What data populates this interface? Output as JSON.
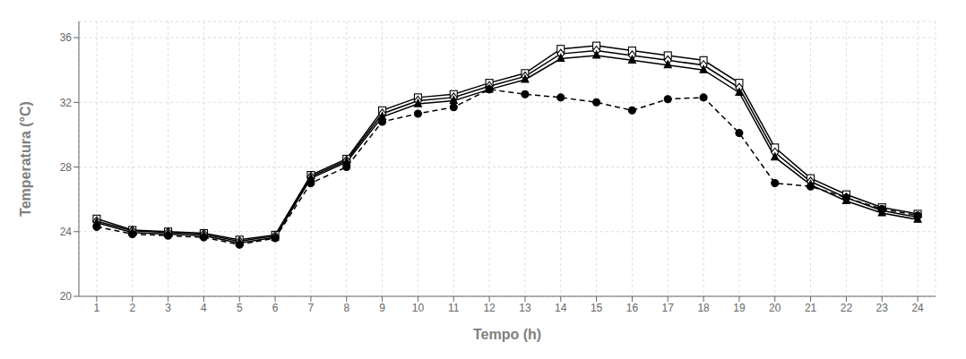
{
  "chart_data": {
    "type": "line",
    "x": [
      1,
      2,
      3,
      4,
      5,
      6,
      7,
      8,
      9,
      10,
      11,
      12,
      13,
      14,
      15,
      16,
      17,
      18,
      19,
      20,
      21,
      22,
      23,
      24
    ],
    "series": [
      {
        "color": "#000000",
        "marker": "square_open",
        "line_style": "solid",
        "values": [
          24.8,
          24.1,
          24.0,
          23.9,
          23.5,
          23.8,
          27.5,
          28.5,
          31.5,
          32.3,
          32.5,
          33.2,
          33.8,
          35.3,
          35.5,
          35.2,
          34.9,
          34.6,
          33.2,
          29.2,
          27.3,
          26.3,
          25.5,
          25.1
        ]
      },
      {
        "color": "#000000",
        "marker": "diamond_open",
        "line_style": "solid",
        "values": [
          24.65,
          24.05,
          23.95,
          23.85,
          23.4,
          23.75,
          27.4,
          28.4,
          31.3,
          32.1,
          32.3,
          33.0,
          33.6,
          35.0,
          35.2,
          34.9,
          34.6,
          34.3,
          32.9,
          28.9,
          27.1,
          26.1,
          25.3,
          24.9
        ]
      },
      {
        "color": "#000000",
        "marker": "triangle",
        "line_style": "solid",
        "values": [
          24.55,
          23.95,
          23.85,
          23.75,
          23.3,
          23.65,
          27.3,
          28.3,
          31.1,
          31.9,
          32.1,
          32.8,
          33.4,
          34.7,
          34.9,
          34.6,
          34.3,
          34.0,
          32.6,
          28.6,
          26.9,
          25.9,
          25.15,
          24.75
        ]
      },
      {
        "color": "#000000",
        "marker": "circle",
        "line_style": "dashed",
        "values": [
          24.3,
          23.85,
          23.75,
          23.65,
          23.2,
          23.6,
          27.0,
          28.0,
          30.8,
          31.3,
          31.7,
          32.8,
          32.5,
          32.3,
          32.0,
          31.5,
          32.2,
          32.3,
          30.1,
          27.0,
          26.8,
          26.1,
          25.4,
          25.0
        ]
      }
    ],
    "x_label": "Tempo (h)",
    "y_label": "Temperatura (°C)",
    "xlim": [
      0.5,
      24.5
    ],
    "ylim": [
      20,
      37
    ],
    "xticks": [
      1,
      2,
      3,
      4,
      5,
      6,
      7,
      8,
      9,
      10,
      11,
      12,
      13,
      14,
      15,
      16,
      17,
      18,
      19,
      20,
      21,
      22,
      23,
      24
    ],
    "yticks": [
      20,
      24,
      28,
      32,
      36
    ],
    "grid": true
  }
}
